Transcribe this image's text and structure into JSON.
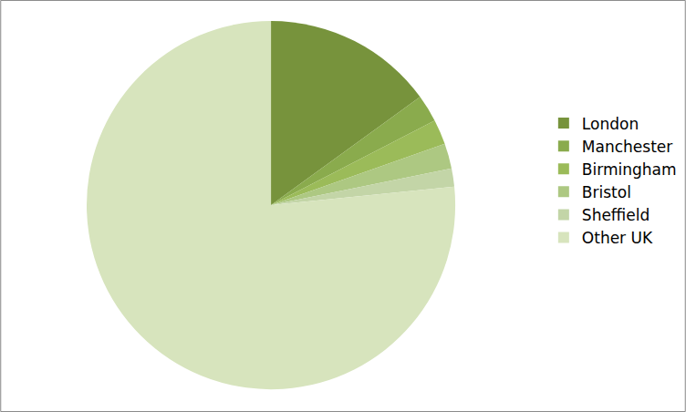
{
  "chart_data": {
    "type": "pie",
    "categories": [
      "London",
      "Manchester",
      "Birmingham",
      "Bristol",
      "Sheffield",
      "Other UK"
    ],
    "values": [
      15,
      2.4,
      2.2,
      2.2,
      1.6,
      76.6
    ],
    "colors": [
      "#77933c",
      "#8aab4d",
      "#9bbb59",
      "#adc882",
      "#c3d5a7",
      "#d7e4bd"
    ],
    "legend": "right"
  }
}
